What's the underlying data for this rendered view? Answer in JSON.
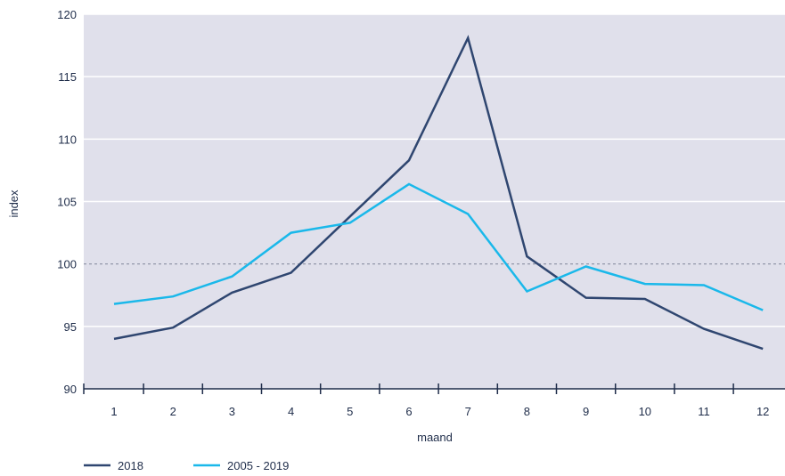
{
  "chart_data": {
    "type": "line",
    "title": "",
    "xlabel": "maand",
    "ylabel": "index",
    "x": [
      1,
      2,
      3,
      4,
      5,
      6,
      7,
      8,
      9,
      10,
      11,
      12
    ],
    "x_tick_labels": [
      "1",
      "2",
      "3",
      "4",
      "5",
      "6",
      "7",
      "8",
      "9",
      "10",
      "11",
      "12"
    ],
    "y_ticks": [
      90,
      95,
      100,
      105,
      110,
      115,
      120
    ],
    "y_tick_labels": [
      "90",
      "95",
      "100",
      "105",
      "110",
      "115",
      "120"
    ],
    "ylim": [
      90,
      120
    ],
    "grid": true,
    "reference_line": 100,
    "legend_position": "bottom-left",
    "series": [
      {
        "name": "2018",
        "color": "#2f4670",
        "values": [
          94.0,
          94.9,
          97.7,
          99.3,
          103.8,
          108.3,
          118.1,
          100.6,
          97.3,
          97.2,
          94.8,
          93.2
        ]
      },
      {
        "name": "2005 - 2019",
        "color": "#1ab8ea",
        "values": [
          96.8,
          97.4,
          99.0,
          102.5,
          103.3,
          106.4,
          104.0,
          97.8,
          99.8,
          98.4,
          98.3,
          96.3
        ]
      }
    ],
    "colors": {
      "plot_background": "#e0e0eb",
      "gridline": "#ffffff",
      "reference_line": "#8a8fa3",
      "axis": "#1f2d4a"
    }
  }
}
